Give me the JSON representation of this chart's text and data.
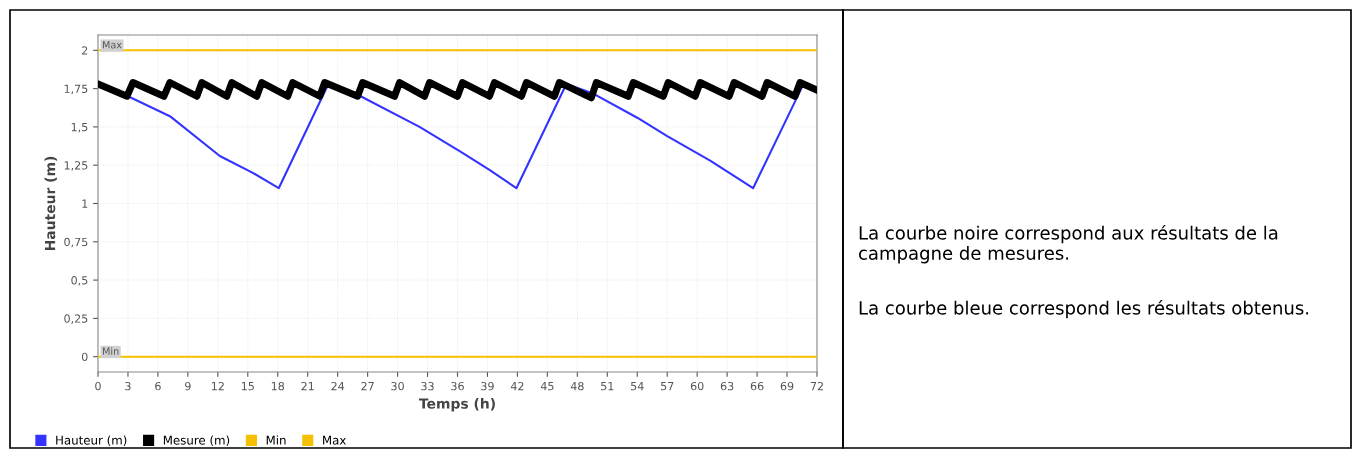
{
  "chart_data": {
    "type": "line",
    "xlabel": "Temps (h)",
    "ylabel": "Hauteur (m)",
    "xlim": [
      0,
      72
    ],
    "xticks": [
      0,
      3,
      6,
      9,
      12,
      15,
      18,
      21,
      24,
      27,
      30,
      33,
      36,
      39,
      42,
      45,
      48,
      51,
      54,
      57,
      60,
      63,
      66,
      69,
      72
    ],
    "ylim": [
      -0.1,
      2.1
    ],
    "yticks": [
      0,
      {
        "value": 0.25,
        "label": "0,25"
      },
      {
        "value": 0.5,
        "label": "0,5"
      },
      {
        "value": 0.75,
        "label": "0,75"
      },
      1,
      {
        "value": 1.25,
        "label": "1,25"
      },
      {
        "value": 1.5,
        "label": "1,5"
      },
      {
        "value": 1.75,
        "label": "1,75"
      },
      2
    ],
    "grid": true,
    "legend": "bottom left",
    "series": [
      {
        "name": "Hauteur (m)",
        "color": "#3333ff",
        "x": [
          3,
          7.2,
          12.2,
          15.5,
          18.1,
          23.0,
          26.3,
          32.2,
          36.5,
          39.2,
          41.9,
          46.9,
          49.5,
          54.0,
          57.0,
          61.3,
          65.6,
          70.5
        ],
        "values": [
          1.7,
          1.57,
          1.31,
          1.2,
          1.1,
          1.77,
          1.7,
          1.5,
          1.33,
          1.22,
          1.1,
          1.78,
          1.72,
          1.56,
          1.44,
          1.28,
          1.1,
          1.76
        ]
      },
      {
        "name": "Mesure (m)",
        "color": "#000000",
        "x": [
          0,
          2.9,
          3.5,
          6.6,
          7.2,
          9.9,
          10.4,
          12.9,
          13.4,
          15.9,
          16.4,
          19.0,
          19.5,
          22.2,
          22.7,
          26.0,
          26.5,
          29.7,
          30.2,
          32.7,
          33.2,
          36.0,
          36.5,
          39.2,
          39.7,
          42.4,
          42.9,
          45.7,
          46.2,
          49.4,
          49.9,
          53.1,
          53.6,
          56.6,
          57.1,
          59.8,
          60.3,
          63.2,
          63.7,
          66.5,
          67.0,
          69.8,
          70.3,
          72
        ],
        "values": [
          1.78,
          1.7,
          1.79,
          1.7,
          1.79,
          1.7,
          1.79,
          1.7,
          1.79,
          1.7,
          1.79,
          1.7,
          1.79,
          1.7,
          1.79,
          1.7,
          1.79,
          1.7,
          1.79,
          1.7,
          1.79,
          1.7,
          1.79,
          1.7,
          1.79,
          1.7,
          1.79,
          1.7,
          1.79,
          1.69,
          1.79,
          1.7,
          1.79,
          1.7,
          1.79,
          1.7,
          1.79,
          1.7,
          1.79,
          1.7,
          1.79,
          1.7,
          1.79,
          1.74
        ]
      },
      {
        "name": "Min",
        "color": "#f5c000",
        "x": [
          0,
          72
        ],
        "values": [
          0,
          0
        ]
      },
      {
        "name": "Max",
        "color": "#f5c000",
        "x": [
          0,
          72
        ],
        "values": [
          2,
          2
        ]
      }
    ],
    "annotations": [
      {
        "text": "Max",
        "x": 0.4,
        "y": 2
      },
      {
        "text": "Min",
        "x": 0.4,
        "y": 0
      },
      "La courbe noire correspond aux résultats de la campagne de mesures.",
      "La courbe bleue correspond les résultats obtenus."
    ]
  }
}
